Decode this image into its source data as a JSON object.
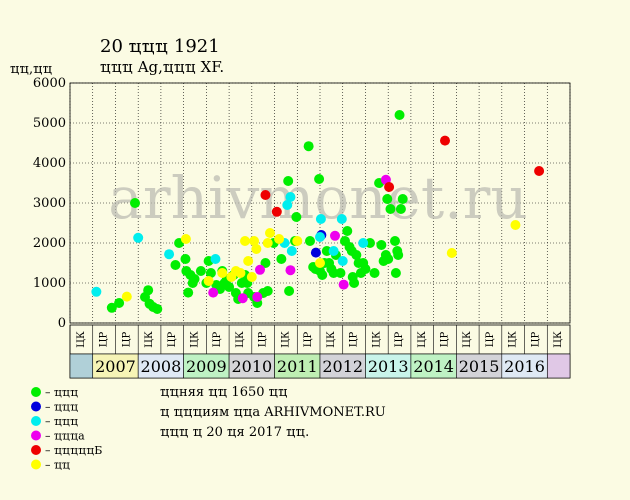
{
  "chart_data": {
    "type": "scatter",
    "title": "20 ҵҵҵ 1921",
    "subtitle": "ҵҵҵ Ag,ҵҵҵ XF.",
    "ylabel": "ҵҵ,ҵҵ",
    "watermark": "arhivmonet.ru",
    "ylim": [
      0,
      6000
    ],
    "yticks": [
      0,
      1000,
      2000,
      3000,
      4000,
      5000,
      6000
    ],
    "half_labels": [
      "ЦК",
      "ЦР",
      "ЦР",
      "ЦК",
      "ЦР",
      "ЦК",
      "ЦР",
      "ЦК",
      "ЦР",
      "ЦК",
      "ЦР",
      "ЦК",
      "ЦР",
      "ЦК",
      "ЦР",
      "ЦК",
      "ЦР",
      "ЦК",
      "ЦР",
      "ЦК",
      "ЦР",
      "ЦК"
    ],
    "years": [
      {
        "label": "2007",
        "color": "#f6f4b6"
      },
      {
        "label": "2008",
        "color": "#dfe9f4"
      },
      {
        "label": "2009",
        "color": "#bff2c4"
      },
      {
        "label": "2010",
        "color": "#d6d6d8"
      },
      {
        "label": "2011",
        "color": "#bfeeb3"
      },
      {
        "label": "2012",
        "color": "#d3d3d8"
      },
      {
        "label": "2013",
        "color": "#c9f4ea"
      },
      {
        "label": "2014",
        "color": "#bff2c4"
      },
      {
        "label": "2015",
        "color": "#d3d3d8"
      },
      {
        "label": "2016",
        "color": "#dfe9f4"
      }
    ],
    "edge_colors": {
      "left": "#b0d0d8",
      "right": "#e0c8e6"
    },
    "series": [
      {
        "name": "ҵҵҵ",
        "color": "#00ee00",
        "points": [
          [
            0.42,
            380
          ],
          [
            0.58,
            500
          ],
          [
            0.93,
            3000
          ],
          [
            1.15,
            650
          ],
          [
            1.22,
            820
          ],
          [
            1.25,
            480
          ],
          [
            1.33,
            400
          ],
          [
            1.42,
            350
          ],
          [
            1.82,
            1450
          ],
          [
            1.9,
            2000
          ],
          [
            2.04,
            1600
          ],
          [
            2.06,
            1300
          ],
          [
            2.1,
            760
          ],
          [
            2.15,
            1200
          ],
          [
            2.2,
            1000
          ],
          [
            2.24,
            1100
          ],
          [
            2.38,
            1300
          ],
          [
            2.5,
            1000
          ],
          [
            2.55,
            1550
          ],
          [
            2.6,
            1250
          ],
          [
            2.72,
            950
          ],
          [
            2.8,
            850
          ],
          [
            2.85,
            1300
          ],
          [
            2.9,
            1000
          ],
          [
            2.95,
            1100
          ],
          [
            3.0,
            900
          ],
          [
            3.1,
            1200
          ],
          [
            3.15,
            750
          ],
          [
            3.2,
            600
          ],
          [
            3.28,
            1000
          ],
          [
            3.35,
            1200
          ],
          [
            3.4,
            1000
          ],
          [
            3.42,
            750
          ],
          [
            3.55,
            650
          ],
          [
            3.62,
            500
          ],
          [
            3.75,
            750
          ],
          [
            3.85,
            800
          ],
          [
            3.8,
            1500
          ],
          [
            3.98,
            2000
          ],
          [
            4.15,
            1600
          ],
          [
            4.3,
            3550
          ],
          [
            4.32,
            800
          ],
          [
            4.45,
            2050
          ],
          [
            4.48,
            2650
          ],
          [
            4.75,
            4420
          ],
          [
            4.78,
            2050
          ],
          [
            4.85,
            1400
          ],
          [
            4.9,
            1350
          ],
          [
            4.98,
            3600
          ],
          [
            5.0,
            1300
          ],
          [
            5.05,
            1200
          ],
          [
            5.1,
            1500
          ],
          [
            5.15,
            1800
          ],
          [
            5.2,
            1500
          ],
          [
            5.25,
            1350
          ],
          [
            5.3,
            1250
          ],
          [
            5.35,
            1700
          ],
          [
            5.45,
            1250
          ],
          [
            5.55,
            2050
          ],
          [
            5.6,
            2300
          ],
          [
            5.65,
            1900
          ],
          [
            5.7,
            1800
          ],
          [
            5.72,
            1150
          ],
          [
            5.75,
            1000
          ],
          [
            5.8,
            1700
          ],
          [
            5.85,
            1500
          ],
          [
            5.9,
            1250
          ],
          [
            5.95,
            1500
          ],
          [
            6.0,
            1350
          ],
          [
            6.1,
            2000
          ],
          [
            6.2,
            1250
          ],
          [
            6.3,
            3500
          ],
          [
            6.35,
            1950
          ],
          [
            6.4,
            1550
          ],
          [
            6.45,
            1700
          ],
          [
            6.48,
            3100
          ],
          [
            6.5,
            1600
          ],
          [
            6.55,
            2850
          ],
          [
            6.65,
            2050
          ],
          [
            6.67,
            1250
          ],
          [
            6.7,
            1800
          ],
          [
            6.72,
            1700
          ],
          [
            6.75,
            5200
          ],
          [
            6.78,
            2850
          ],
          [
            6.82,
            3100
          ]
        ]
      },
      {
        "name": "ҵҵҵ",
        "color": "#0000dd",
        "points": [
          [
            4.91,
            1760
          ],
          [
            5.03,
            2200
          ]
        ]
      },
      {
        "name": "ҵҵҵ",
        "color": "#00eeee",
        "points": [
          [
            0.08,
            780
          ],
          [
            1.0,
            2130
          ],
          [
            1.68,
            1720
          ],
          [
            2.7,
            1600
          ],
          [
            4.22,
            2000
          ],
          [
            4.28,
            2950
          ],
          [
            4.35,
            3150
          ],
          [
            4.38,
            1800
          ],
          [
            5.02,
            2600
          ],
          [
            5.0,
            2150
          ],
          [
            5.3,
            1800
          ],
          [
            5.48,
            2600
          ],
          [
            5.5,
            1550
          ],
          [
            5.95,
            2000
          ]
        ]
      },
      {
        "name": "ҵҵҵa",
        "color": "#ee00ee",
        "points": [
          [
            2.65,
            760
          ],
          [
            3.3,
            620
          ],
          [
            3.62,
            650
          ],
          [
            3.68,
            1330
          ],
          [
            4.35,
            1320
          ],
          [
            5.33,
            2180
          ],
          [
            5.52,
            960
          ],
          [
            6.45,
            3580
          ]
        ]
      },
      {
        "name": "ҵҵҵҵҵБ",
        "color": "#ee0000",
        "points": [
          [
            3.8,
            3200
          ],
          [
            4.05,
            2780
          ],
          [
            6.52,
            3400
          ],
          [
            7.75,
            4560
          ],
          [
            9.82,
            3800
          ]
        ]
      },
      {
        "name": "ҵҵ",
        "color": "#ffff00",
        "points": [
          [
            0.75,
            660
          ],
          [
            2.05,
            2100
          ],
          [
            2.55,
            1050
          ],
          [
            2.85,
            1250
          ],
          [
            3.05,
            1150
          ],
          [
            3.15,
            1300
          ],
          [
            3.25,
            1250
          ],
          [
            3.35,
            2050
          ],
          [
            3.42,
            1550
          ],
          [
            3.5,
            1150
          ],
          [
            3.55,
            2050
          ],
          [
            3.6,
            1850
          ],
          [
            3.85,
            2000
          ],
          [
            3.9,
            2250
          ],
          [
            4.1,
            2100
          ],
          [
            4.5,
            2050
          ],
          [
            5.0,
            1500
          ],
          [
            7.9,
            1750
          ],
          [
            9.3,
            2450
          ]
        ]
      }
    ]
  },
  "legend": [
    {
      "label": "– ҵҵҵ",
      "color": "#00ee00"
    },
    {
      "label": "– ҵҵҵ",
      "color": "#0000dd"
    },
    {
      "label": "– ҵҵҵ",
      "color": "#00eeee"
    },
    {
      "label": "– ҵҵҵa",
      "color": "#ee00ee"
    },
    {
      "label": "– ҵҵҵҵҵБ",
      "color": "#ee0000"
    },
    {
      "label": "– ҵҵ",
      "color": "#ffff00"
    }
  ],
  "notes": [
    "ҵҵняя ҵҵ 1650 ҵҵ",
    "ҵ ҵҵҵиям ҵҵa ARHIVMONET.RU",
    "ҵҵҵ ҵ 20 ҵя 2017 ҵҵ."
  ]
}
